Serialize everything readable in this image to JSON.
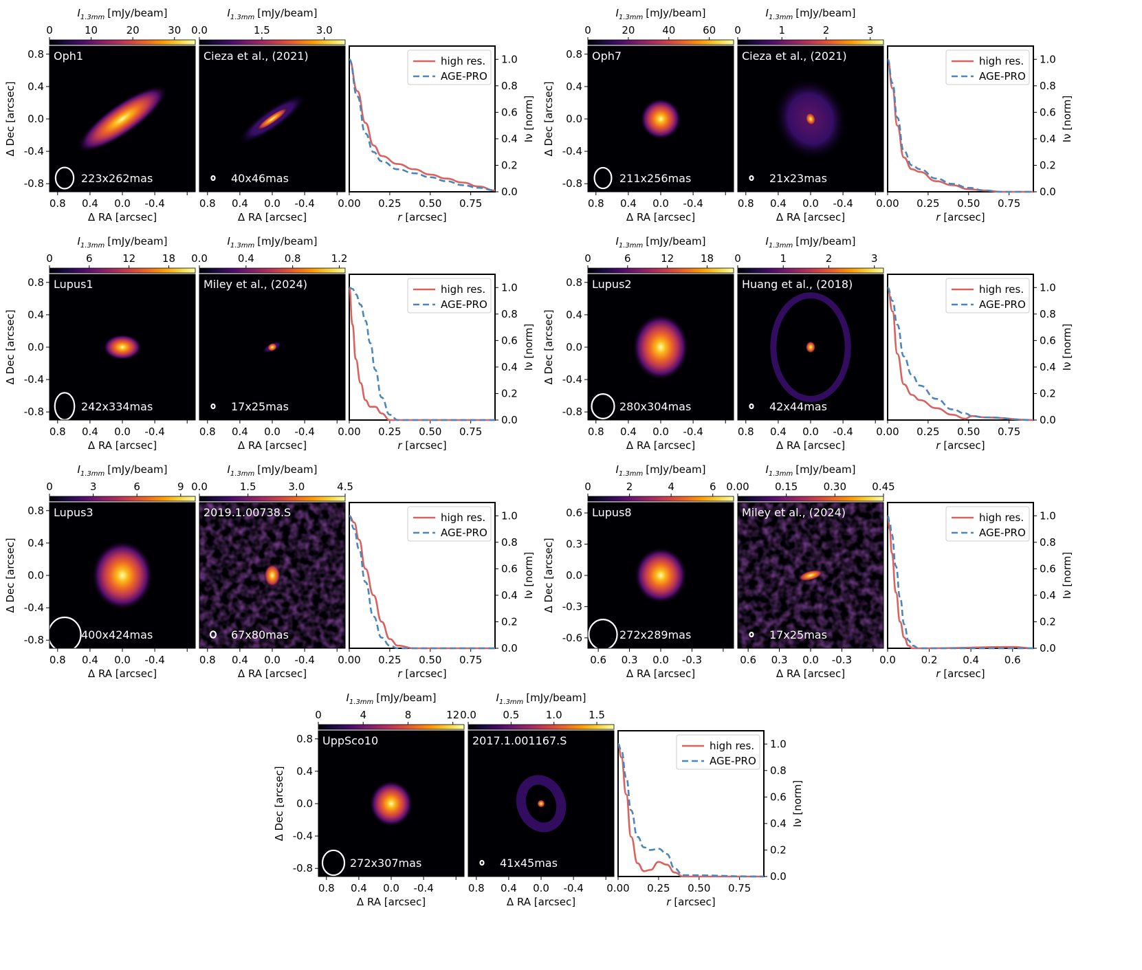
{
  "figure": {
    "cbar_label": "I",
    "cbar_label_sub": "1.3mm",
    "cbar_label_unit": "[mJy/beam]",
    "xlabel_map": "Δ RA [arcsec]",
    "ylabel_map": "Δ Dec [arcsec]",
    "xlabel_prof": "r [arcsec]",
    "ylabel_prof": "Iν [norm]",
    "legend": [
      "high res.",
      "AGE-PRO"
    ],
    "colors": {
      "high_res": "#d9625f",
      "age_pro": "#4b86ba",
      "colormap": "inferno",
      "beam": "#ffffff",
      "label": "#ffffff"
    }
  },
  "chart_data": [
    {
      "type": "image+line",
      "source": "Oph1",
      "reference": "Cieza et al., (2021)",
      "map_ticks": [
        "0.8",
        "0.4",
        "0.0",
        "-0.4",
        "-0.8"
      ],
      "map_lim": 0.9,
      "beam_agepro": "223x262mas",
      "beam_highres": "40x46mas",
      "cbar_agepro": [
        "0",
        "10",
        "20",
        "30"
      ],
      "cbar_agepro_max": 35,
      "cbar_highres": [
        "0.0",
        "1.5",
        "3.0"
      ],
      "cbar_highres_max": 3.5,
      "morph_agepro": {
        "sx": 0.42,
        "sy": 0.12,
        "pa": -35,
        "shape": "disk"
      },
      "morph_highres": {
        "sx": 0.38,
        "sy": 0.08,
        "pa": -35,
        "shape": "disk-core"
      },
      "prof_xticks": [
        "0.00",
        "0.25",
        "0.50",
        "0.75"
      ],
      "prof_xlim": [
        0,
        0.9
      ],
      "prof_yticks": [
        "0.0",
        "0.2",
        "0.4",
        "0.6",
        "0.8",
        "1.0"
      ],
      "prof_ylim": [
        0,
        1.1
      ],
      "x": [
        0,
        0.05,
        0.1,
        0.15,
        0.2,
        0.3,
        0.4,
        0.5,
        0.6,
        0.7,
        0.8,
        0.9
      ],
      "series": [
        {
          "name": "high res.",
          "values": [
            1.0,
            0.76,
            0.52,
            0.35,
            0.27,
            0.21,
            0.17,
            0.13,
            0.1,
            0.07,
            0.04,
            0.01
          ]
        },
        {
          "name": "AGE-PRO",
          "values": [
            1.0,
            0.72,
            0.44,
            0.3,
            0.23,
            0.17,
            0.14,
            0.11,
            0.08,
            0.05,
            0.03,
            0.01
          ]
        }
      ]
    },
    {
      "type": "image+line",
      "source": "Oph7",
      "reference": "Cieza et al., (2021)",
      "map_ticks": [
        "0.8",
        "0.4",
        "0.0",
        "-0.4",
        "-0.8"
      ],
      "map_lim": 0.9,
      "beam_agepro": "211x256mas",
      "beam_highres": "21x23mas",
      "cbar_agepro": [
        "0",
        "20",
        "40",
        "60"
      ],
      "cbar_agepro_max": 72,
      "cbar_highres": [
        "0",
        "1",
        "2",
        "3"
      ],
      "cbar_highres_max": 3.3,
      "morph_agepro": {
        "sx": 0.16,
        "sy": 0.16,
        "pa": 0,
        "shape": "blob"
      },
      "morph_highres": {
        "sx": 0.1,
        "sy": 0.13,
        "pa": -20,
        "shape": "halo-core"
      },
      "prof_xticks": [
        "0.00",
        "0.25",
        "0.50",
        "0.75"
      ],
      "prof_xlim": [
        0,
        0.9
      ],
      "prof_yticks": [
        "0.0",
        "0.2",
        "0.4",
        "0.6",
        "0.8",
        "1.0"
      ],
      "prof_ylim": [
        0,
        1.1
      ],
      "x": [
        0,
        0.03,
        0.06,
        0.1,
        0.15,
        0.2,
        0.3,
        0.4,
        0.5,
        0.6,
        0.7,
        0.9
      ],
      "series": [
        {
          "name": "high res.",
          "values": [
            1.0,
            0.78,
            0.5,
            0.26,
            0.17,
            0.15,
            0.08,
            0.05,
            0.02,
            0.01,
            0.0,
            0.0
          ]
        },
        {
          "name": "AGE-PRO",
          "values": [
            1.0,
            0.82,
            0.56,
            0.31,
            0.2,
            0.17,
            0.1,
            0.06,
            0.03,
            0.01,
            0.0,
            0.0
          ]
        }
      ]
    },
    {
      "type": "image+line",
      "source": "Lupus1",
      "reference": "Miley et al., (2024)",
      "map_ticks": [
        "0.8",
        "0.4",
        "0.0",
        "-0.4",
        "-0.8"
      ],
      "map_lim": 0.9,
      "beam_agepro": "242x334mas",
      "beam_highres": "17x25mas",
      "cbar_agepro": [
        "0",
        "6",
        "12",
        "18"
      ],
      "cbar_agepro_max": 22,
      "cbar_highres": [
        "0.0",
        "0.4",
        "0.8",
        "1.2"
      ],
      "cbar_highres_max": 1.25,
      "morph_agepro": {
        "sx": 0.15,
        "sy": 0.1,
        "pa": 0,
        "shape": "blob"
      },
      "morph_highres": {
        "sx": 0.1,
        "sy": 0.035,
        "pa": -25,
        "shape": "disk-core"
      },
      "prof_xticks": [
        "0.00",
        "0.25",
        "0.50",
        "0.75"
      ],
      "prof_xlim": [
        0,
        0.9
      ],
      "prof_yticks": [
        "0.0",
        "0.2",
        "0.4",
        "0.6",
        "0.8",
        "1.0"
      ],
      "prof_ylim": [
        0,
        1.1
      ],
      "x": [
        0,
        0.02,
        0.04,
        0.07,
        0.1,
        0.13,
        0.16,
        0.2,
        0.25,
        0.3,
        0.5,
        0.9
      ],
      "series": [
        {
          "name": "high res.",
          "values": [
            1.0,
            0.72,
            0.46,
            0.28,
            0.15,
            0.1,
            0.1,
            0.05,
            0.0,
            0.0,
            0.0,
            0.0
          ]
        },
        {
          "name": "AGE-PRO",
          "values": [
            1.0,
            0.99,
            0.95,
            0.87,
            0.75,
            0.58,
            0.38,
            0.17,
            0.04,
            0.0,
            0.0,
            0.0
          ]
        }
      ]
    },
    {
      "type": "image+line",
      "source": "Lupus2",
      "reference": "Huang et al., (2018)",
      "map_ticks": [
        "0.8",
        "0.4",
        "0.0",
        "-0.4",
        "-0.8"
      ],
      "map_lim": 0.9,
      "beam_agepro": "280x304mas",
      "beam_highres": "42x44mas",
      "cbar_agepro": [
        "0",
        "6",
        "12",
        "18"
      ],
      "cbar_agepro_max": 22,
      "cbar_highres": [
        "0",
        "1",
        "2",
        "3"
      ],
      "cbar_highres_max": 3.2,
      "morph_agepro": {
        "sx": 0.22,
        "sy": 0.26,
        "pa": 0,
        "shape": "blob"
      },
      "morph_highres": {
        "sx": 0.1,
        "sy": 0.12,
        "pa": 0,
        "shape": "ring",
        "ring_rx": 0.46,
        "ring_ry": 0.64
      },
      "prof_xticks": [
        "0.00",
        "0.25",
        "0.50",
        "0.75"
      ],
      "prof_xlim": [
        0,
        0.9
      ],
      "prof_yticks": [
        "0.0",
        "0.2",
        "0.4",
        "0.6",
        "0.8",
        "1.0"
      ],
      "prof_ylim": [
        0,
        1.1
      ],
      "x": [
        0,
        0.03,
        0.06,
        0.1,
        0.15,
        0.2,
        0.3,
        0.4,
        0.48,
        0.52,
        0.6,
        0.9
      ],
      "series": [
        {
          "name": "high res.",
          "values": [
            1.0,
            0.82,
            0.5,
            0.27,
            0.19,
            0.15,
            0.09,
            0.04,
            0.01,
            0.03,
            0.02,
            0.0
          ]
        },
        {
          "name": "AGE-PRO",
          "values": [
            1.0,
            0.9,
            0.72,
            0.48,
            0.34,
            0.26,
            0.16,
            0.08,
            0.05,
            0.03,
            0.02,
            0.0
          ]
        }
      ]
    },
    {
      "type": "image+line",
      "source": "Lupus3",
      "reference": "2019.1.00738.S",
      "map_ticks": [
        "0.8",
        "0.4",
        "0.0",
        "-0.4",
        "-0.8"
      ],
      "map_lim": 0.9,
      "beam_agepro": "400x424mas",
      "beam_highres": "67x80mas",
      "cbar_agepro": [
        "0",
        "3",
        "6",
        "9"
      ],
      "cbar_agepro_max": 10,
      "cbar_highres": [
        "0.0",
        "1.5",
        "3.0",
        "4.5"
      ],
      "cbar_highres_max": 4.5,
      "morph_agepro": {
        "sx": 0.24,
        "sy": 0.27,
        "pa": 0,
        "shape": "blob"
      },
      "morph_highres": {
        "sx": 0.07,
        "sy": 0.1,
        "pa": 0,
        "shape": "noisy-core"
      },
      "prof_xticks": [
        "0.00",
        "0.25",
        "0.50",
        "0.75"
      ],
      "prof_xlim": [
        0,
        0.9
      ],
      "prof_yticks": [
        "0.0",
        "0.2",
        "0.4",
        "0.6",
        "0.8",
        "1.0"
      ],
      "prof_ylim": [
        0,
        1.1
      ],
      "x": [
        0,
        0.03,
        0.06,
        0.1,
        0.15,
        0.2,
        0.25,
        0.3,
        0.4,
        0.5,
        0.7,
        0.9
      ],
      "series": [
        {
          "name": "high res.",
          "values": [
            1.0,
            0.95,
            0.82,
            0.6,
            0.4,
            0.2,
            0.07,
            0.02,
            0.0,
            0.0,
            0.0,
            0.0
          ]
        },
        {
          "name": "AGE-PRO",
          "values": [
            1.0,
            0.9,
            0.75,
            0.5,
            0.24,
            0.08,
            0.02,
            0.0,
            0.0,
            0.0,
            0.0,
            0.0
          ]
        }
      ]
    },
    {
      "type": "image+line",
      "source": "Lupus8",
      "reference": "Miley et al., (2024)",
      "map_ticks": [
        "0.6",
        "0.3",
        "0.0",
        "-0.3",
        "-0.6"
      ],
      "map_lim": 0.7,
      "beam_agepro": "272x289mas",
      "beam_highres": "17x25mas",
      "cbar_agepro": [
        "0",
        "2",
        "4",
        "6"
      ],
      "cbar_agepro_max": 7,
      "cbar_highres": [
        "0.00",
        "0.15",
        "0.30",
        "0.45"
      ],
      "cbar_highres_max": 0.45,
      "morph_agepro": {
        "sx": 0.16,
        "sy": 0.17,
        "pa": 0,
        "shape": "blob"
      },
      "morph_highres": {
        "sx": 0.08,
        "sy": 0.03,
        "pa": -15,
        "shape": "noisy-disk"
      },
      "prof_xticks": [
        "0.0",
        "0.2",
        "0.4",
        "0.6"
      ],
      "prof_xlim": [
        0,
        0.7
      ],
      "prof_yticks": [
        "0.0",
        "0.2",
        "0.4",
        "0.6",
        "0.8",
        "1.0"
      ],
      "prof_ylim": [
        0,
        1.1
      ],
      "x": [
        0,
        0.01,
        0.02,
        0.04,
        0.06,
        0.08,
        0.1,
        0.12,
        0.15,
        0.2,
        0.6,
        0.7
      ],
      "series": [
        {
          "name": "high res.",
          "values": [
            1.0,
            0.9,
            0.72,
            0.42,
            0.2,
            0.08,
            0.02,
            0.0,
            0.0,
            0.0,
            0.01,
            0.0
          ]
        },
        {
          "name": "AGE-PRO",
          "values": [
            1.0,
            0.95,
            0.86,
            0.62,
            0.38,
            0.18,
            0.06,
            0.02,
            0.0,
            0.0,
            0.0,
            0.0
          ]
        }
      ]
    },
    {
      "type": "image+line",
      "source": "UppSco10",
      "reference": "2017.1.001167.S",
      "map_ticks": [
        "0.8",
        "0.4",
        "0.0",
        "-0.4",
        "-0.8"
      ],
      "map_lim": 0.9,
      "beam_agepro": "272x307mas",
      "beam_highres": "41x45mas",
      "cbar_agepro": [
        "0",
        "4",
        "8",
        "12"
      ],
      "cbar_agepro_max": 13,
      "cbar_highres": [
        "0.0",
        "0.5",
        "1.0",
        "1.5"
      ],
      "cbar_highres_max": 1.7,
      "morph_agepro": {
        "sx": 0.17,
        "sy": 0.18,
        "pa": 0,
        "shape": "blob"
      },
      "morph_highres": {
        "sx": 0.06,
        "sy": 0.08,
        "pa": -20,
        "shape": "ring",
        "ring_rx": 0.24,
        "ring_ry": 0.3
      },
      "prof_xticks": [
        "0.00",
        "0.25",
        "0.50",
        "0.75"
      ],
      "prof_xlim": [
        0,
        0.9
      ],
      "prof_yticks": [
        "0.0",
        "0.2",
        "0.4",
        "0.6",
        "0.8",
        "1.0"
      ],
      "prof_ylim": [
        0,
        1.1
      ],
      "x": [
        0,
        0.02,
        0.05,
        0.08,
        0.12,
        0.16,
        0.2,
        0.25,
        0.3,
        0.35,
        0.4,
        0.9
      ],
      "series": [
        {
          "name": "high res.",
          "values": [
            1.0,
            0.9,
            0.62,
            0.3,
            0.1,
            0.04,
            0.05,
            0.11,
            0.09,
            0.03,
            0.0,
            0.0
          ]
        },
        {
          "name": "AGE-PRO",
          "values": [
            1.0,
            0.95,
            0.75,
            0.5,
            0.3,
            0.22,
            0.2,
            0.21,
            0.17,
            0.06,
            0.01,
            0.0
          ]
        }
      ]
    }
  ]
}
